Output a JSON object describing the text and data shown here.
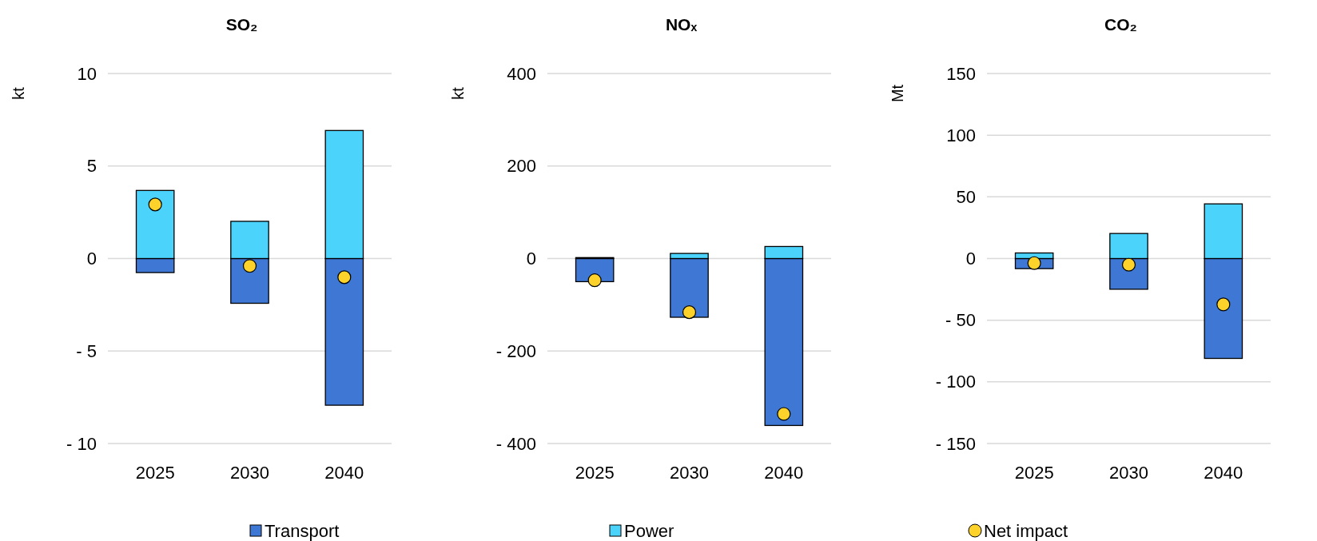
{
  "chart_data": [
    {
      "type": "bar",
      "title": "SO₂",
      "ylabel": "kt",
      "categories": [
        "2025",
        "2030",
        "2040"
      ],
      "stacked": true,
      "legend": "bottom",
      "grid": "y",
      "ylim": [
        -10,
        10
      ],
      "yticks": [
        {
          "value": -10,
          "label": "- 10"
        },
        {
          "value": -5,
          "label": "- 5"
        },
        0,
        5,
        10
      ],
      "series": [
        {
          "name": "Transport",
          "color": "#3f78d4",
          "values": [
            -0.76,
            -2.42,
            -7.93
          ]
        },
        {
          "name": "Power",
          "color": "#4bd3fc",
          "values": [
            3.68,
            2.01,
            6.92
          ]
        },
        {
          "name": "Net impact",
          "type": "scatter",
          "marker": "circle",
          "color": "#fdd22a",
          "values": [
            2.92,
            -0.4,
            -1.01
          ]
        }
      ]
    },
    {
      "type": "bar",
      "title": "NOₓ",
      "ylabel": "kt",
      "categories": [
        "2025",
        "2030",
        "2040"
      ],
      "stacked": true,
      "grid": "y",
      "ylim": [
        -400,
        400
      ],
      "yticks": [
        {
          "value": -400,
          "label": "- 400"
        },
        {
          "value": -200,
          "label": "- 200"
        },
        0,
        200,
        400
      ],
      "series": [
        {
          "color": "#3f78d4",
          "values": [
            -50,
            -127,
            -361
          ]
        },
        {
          "color": "#4bd3fc",
          "values": [
            2,
            11,
            26
          ]
        },
        {
          "type": "scatter",
          "marker": "circle",
          "color": "#fdd22a",
          "values": [
            -47,
            -116,
            -336
          ]
        }
      ]
    },
    {
      "type": "bar",
      "title": "CO₂",
      "ylabel": "Mt",
      "categories": [
        "2025",
        "2030",
        "2040"
      ],
      "stacked": true,
      "grid": "y",
      "ylim": [
        -150,
        150
      ],
      "yticks": [
        {
          "value": -150,
          "label": "- 150"
        },
        {
          "value": -100,
          "label": "- 100"
        },
        {
          "value": -50,
          "label": "- 50"
        },
        0,
        50,
        100,
        150
      ],
      "series": [
        {
          "color": "#3f78d4",
          "values": [
            -8.2,
            -24.9,
            -81
          ]
        },
        {
          "color": "#4bd3fc",
          "values": [
            4.5,
            20.3,
            44.3
          ]
        },
        {
          "type": "scatter",
          "marker": "circle",
          "color": "#fdd22a",
          "values": [
            -3.7,
            -5,
            -37.2
          ]
        }
      ]
    }
  ]
}
